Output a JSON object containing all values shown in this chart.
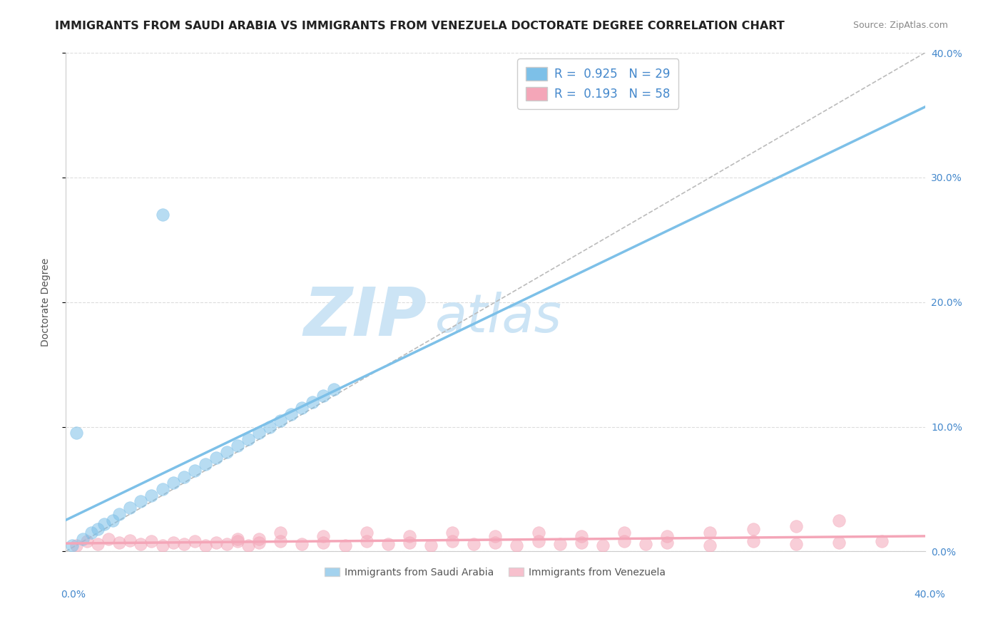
{
  "title": "IMMIGRANTS FROM SAUDI ARABIA VS IMMIGRANTS FROM VENEZUELA DOCTORATE DEGREE CORRELATION CHART",
  "source": "Source: ZipAtlas.com",
  "ylabel": "Doctorate Degree",
  "xlim": [
    0,
    0.4
  ],
  "ylim": [
    0,
    0.4
  ],
  "yticks": [
    0.0,
    0.1,
    0.2,
    0.3,
    0.4
  ],
  "right_ytick_labels": [
    "0.0%",
    "10.0%",
    "20.0%",
    "30.0%",
    "40.0%"
  ],
  "series1_name": "Immigrants from Saudi Arabia",
  "series1_color": "#7dc0e8",
  "series1_R": "0.925",
  "series1_N": "29",
  "series2_name": "Immigrants from Venezuela",
  "series2_color": "#f4a6b8",
  "series2_R": "0.193",
  "series2_N": "58",
  "series1_x": [
    0.008,
    0.012,
    0.015,
    0.018,
    0.022,
    0.025,
    0.03,
    0.035,
    0.04,
    0.045,
    0.05,
    0.055,
    0.06,
    0.065,
    0.07,
    0.075,
    0.08,
    0.085,
    0.09,
    0.095,
    0.1,
    0.105,
    0.11,
    0.115,
    0.12,
    0.125,
    0.005,
    0.003,
    0.045
  ],
  "series1_y": [
    0.01,
    0.015,
    0.018,
    0.022,
    0.025,
    0.03,
    0.035,
    0.04,
    0.045,
    0.05,
    0.055,
    0.06,
    0.065,
    0.07,
    0.075,
    0.08,
    0.085,
    0.09,
    0.095,
    0.1,
    0.105,
    0.11,
    0.115,
    0.12,
    0.125,
    0.13,
    0.095,
    0.005,
    0.27
  ],
  "series2_x": [
    0.005,
    0.01,
    0.015,
    0.02,
    0.025,
    0.03,
    0.035,
    0.04,
    0.045,
    0.05,
    0.055,
    0.06,
    0.065,
    0.07,
    0.075,
    0.08,
    0.085,
    0.09,
    0.1,
    0.11,
    0.12,
    0.13,
    0.14,
    0.15,
    0.16,
    0.17,
    0.18,
    0.19,
    0.2,
    0.21,
    0.22,
    0.23,
    0.24,
    0.25,
    0.26,
    0.27,
    0.28,
    0.3,
    0.32,
    0.34,
    0.36,
    0.38,
    0.1,
    0.12,
    0.14,
    0.16,
    0.18,
    0.2,
    0.22,
    0.24,
    0.26,
    0.28,
    0.08,
    0.09,
    0.3,
    0.32,
    0.34,
    0.36
  ],
  "series2_y": [
    0.005,
    0.008,
    0.006,
    0.01,
    0.007,
    0.009,
    0.006,
    0.008,
    0.005,
    0.007,
    0.006,
    0.008,
    0.005,
    0.007,
    0.006,
    0.008,
    0.005,
    0.007,
    0.008,
    0.006,
    0.007,
    0.005,
    0.008,
    0.006,
    0.007,
    0.005,
    0.008,
    0.006,
    0.007,
    0.005,
    0.008,
    0.006,
    0.007,
    0.005,
    0.008,
    0.006,
    0.007,
    0.005,
    0.008,
    0.006,
    0.007,
    0.008,
    0.015,
    0.012,
    0.015,
    0.012,
    0.015,
    0.012,
    0.015,
    0.012,
    0.015,
    0.012,
    0.01,
    0.01,
    0.015,
    0.018,
    0.02,
    0.025
  ],
  "background_color": "#ffffff",
  "grid_color": "#dddddd",
  "title_fontsize": 11.5,
  "source_fontsize": 9,
  "axis_label_fontsize": 10,
  "tick_fontsize": 10,
  "legend_fontsize": 12,
  "watermark_color": "#cce4f5",
  "watermark_fontsize": 68,
  "ref_line_color": "#bbbbbb"
}
